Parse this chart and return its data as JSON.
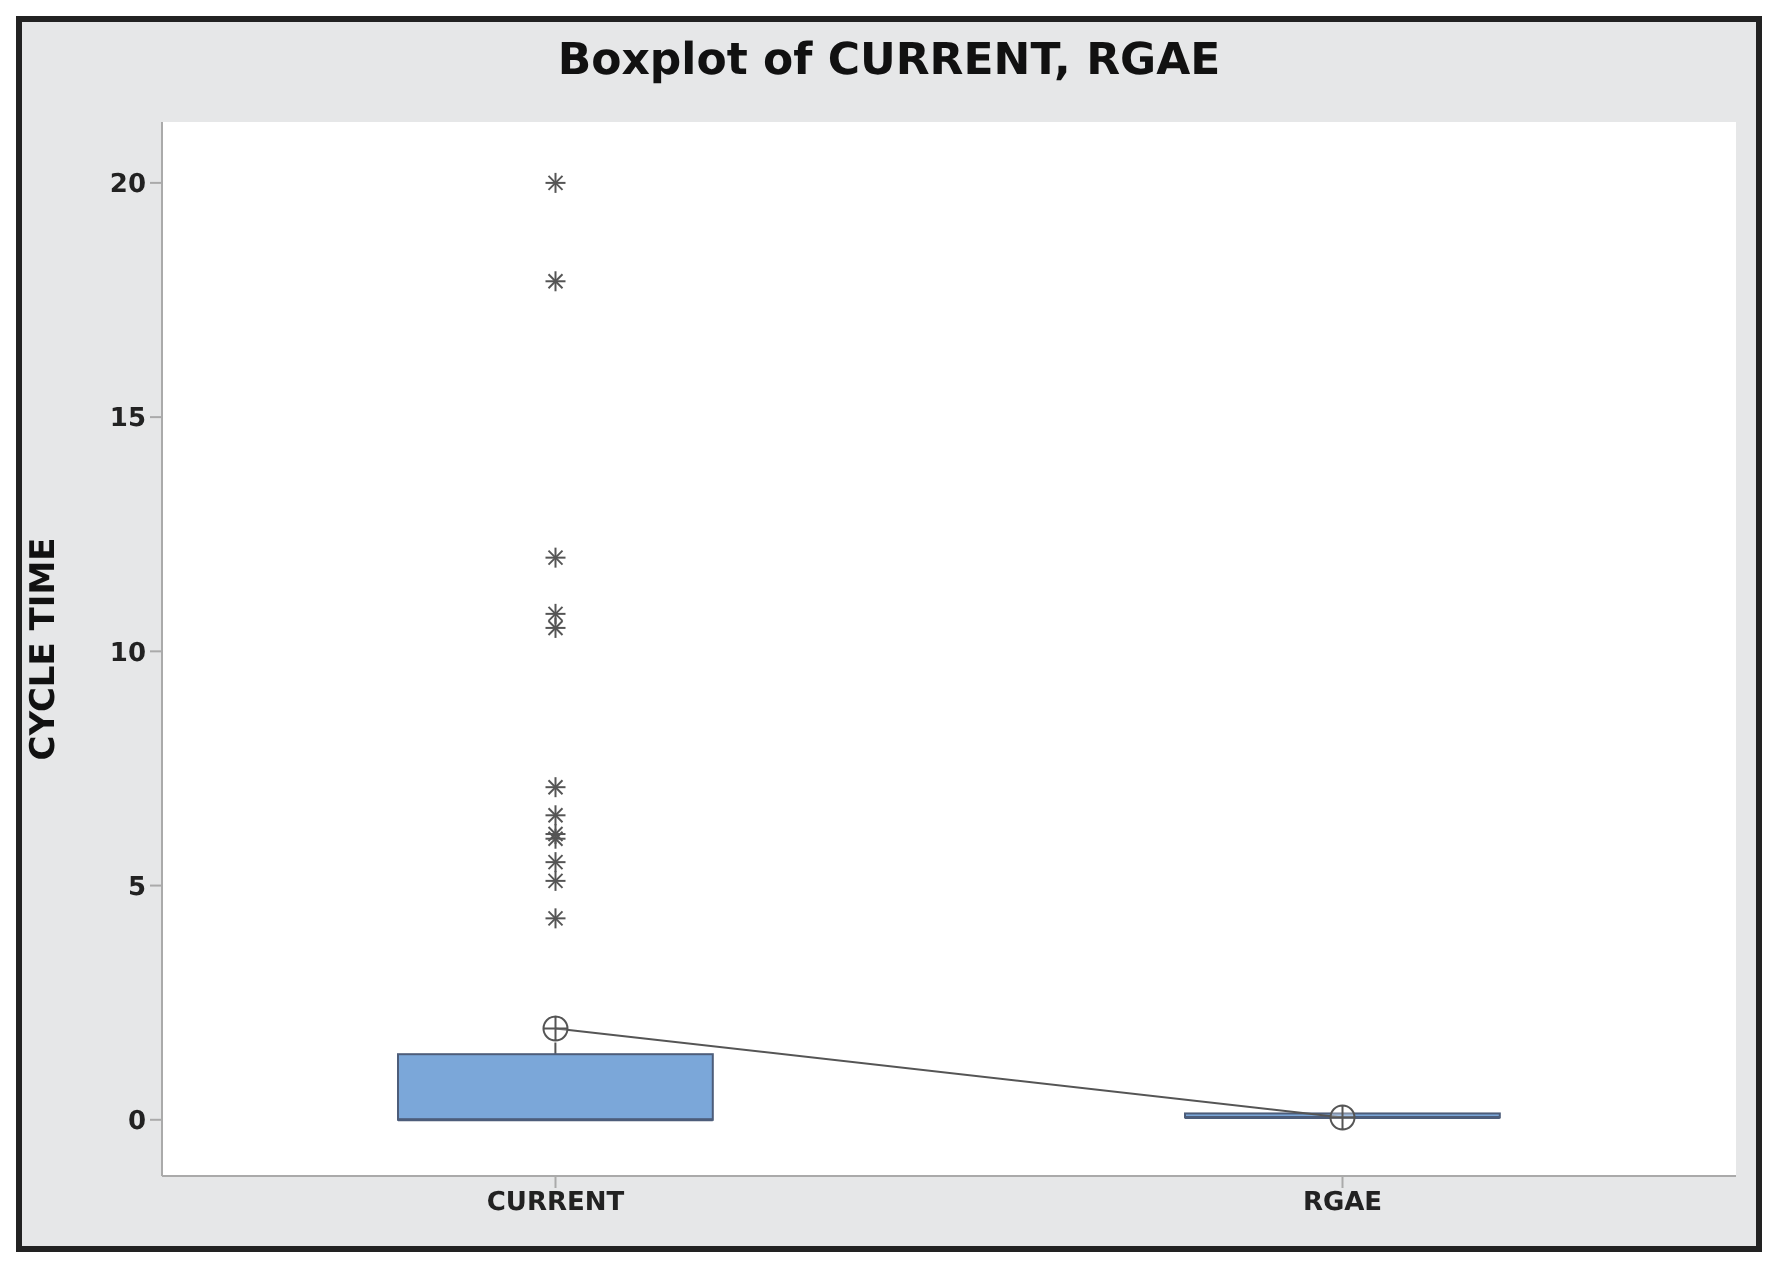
{
  "chart_data": {
    "type": "box",
    "title": "Boxplot of CURRENT, RGAE",
    "ylabel": "CYCLE TIME",
    "categories": [
      "CURRENT",
      "RGAE"
    ],
    "boxes": [
      {
        "low": 0,
        "q1": 0,
        "median": 0,
        "q3": 1.4,
        "high": 1.65,
        "outliers": [
          4.3,
          5.1,
          5.5,
          6.0,
          6.1,
          6.5,
          7.1,
          10.5,
          10.8,
          12.0,
          17.9,
          20.0
        ]
      },
      {
        "low": 0.05,
        "q1": 0.05,
        "median": 0.05,
        "q3": 0.05,
        "high": 0.05
      }
    ],
    "series": [
      {
        "type": "line",
        "color": "#555555",
        "values": [
          1.95,
          0.05
        ],
        "marker": "cross"
      }
    ],
    "color": "#7ba7d9",
    "ylim": [
      -1.2,
      21.3
    ],
    "yticks": [
      0,
      5,
      10,
      15,
      20
    ],
    "grid": false
  }
}
